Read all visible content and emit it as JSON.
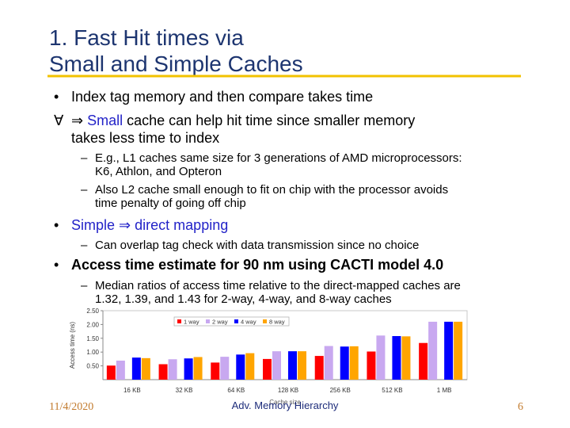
{
  "title": {
    "lines": [
      "1. Fast Hit times via",
      "Small and Simple Caches"
    ]
  },
  "bullets": [
    {
      "marker": "•",
      "parts": [
        {
          "text": "Index tag memory and then compare takes time"
        }
      ],
      "more": []
    },
    {
      "marker": "∀",
      "parts": [
        {
          "text": "⇒"
        },
        {
          "text": "Small",
          "color": "#2323c8"
        },
        {
          "text": "cache can help hit time since smaller memory"
        }
      ],
      "more": [
        "takes less time to index"
      ]
    },
    {
      "marker": "–",
      "parts": [
        {
          "text": "E.g., L1 caches same size for 3 generations of AMD microprocessors:"
        }
      ],
      "more": [
        "K6, Athlon, and Opteron"
      ]
    },
    {
      "marker": "–",
      "parts": [
        {
          "text": "Also L2 cache small enough to fit on chip with the processor avoids"
        }
      ],
      "more": [
        "time penalty of going off chip"
      ]
    },
    {
      "marker": "•",
      "parts": [
        {
          "text": "Simple",
          "color": "#2323c8"
        },
        {
          "text": "⇒",
          "color": "#2323c8"
        },
        {
          "text": "direct mapping",
          "color": "#2323c8"
        }
      ],
      "more": []
    },
    {
      "marker": "–",
      "parts": [
        {
          "text": "Can overlap tag check with data transmission since no choice"
        }
      ],
      "more": []
    },
    {
      "marker": "•",
      "parts": [
        {
          "text": "Access time estimate for 90 nm using CACTI model 4.0"
        }
      ],
      "more": []
    },
    {
      "marker": "–",
      "parts": [
        {
          "text": "Median ratios of access time relative to the direct-mapped caches are"
        }
      ],
      "more": [
        "1.32, 1.39, and 1.43 for 2-way, 4-way, and 8-way caches"
      ]
    }
  ],
  "chart_data": {
    "type": "bar",
    "ylabel": "Access time (ns)",
    "xlabel": "Cache size",
    "categories": [
      "16 KB",
      "32 KB",
      "64 KB",
      "128 KB",
      "256 KB",
      "512 KB",
      "1 MB"
    ],
    "series": [
      {
        "name": "1 way",
        "color": "#ff0000",
        "values": [
          0.51,
          0.56,
          0.62,
          0.75,
          0.86,
          1.02,
          1.33
        ]
      },
      {
        "name": "2 way",
        "color": "#c8a8f0",
        "values": [
          0.69,
          0.74,
          0.83,
          1.03,
          1.22,
          1.6,
          2.1
        ]
      },
      {
        "name": "4 way",
        "color": "#0000ff",
        "values": [
          0.8,
          0.77,
          0.91,
          1.03,
          1.2,
          1.58,
          2.1
        ]
      },
      {
        "name": "8 way",
        "color": "#ffa500",
        "values": [
          0.78,
          0.82,
          0.96,
          1.03,
          1.21,
          1.57,
          2.1
        ]
      }
    ],
    "ylim": [
      0,
      2.5
    ],
    "yticks": [
      {
        "value": 0.5,
        "label": "0.50"
      },
      {
        "value": 1,
        "label": "1.00"
      },
      {
        "value": 1.5,
        "label": "1.50"
      },
      {
        "value": 2,
        "label": "2.00"
      },
      {
        "value": 2.5,
        "label": "2.50"
      }
    ]
  },
  "footer": {
    "date": "11/4/2020",
    "center": "Adv. Memory Hierarchy",
    "page": "6"
  }
}
